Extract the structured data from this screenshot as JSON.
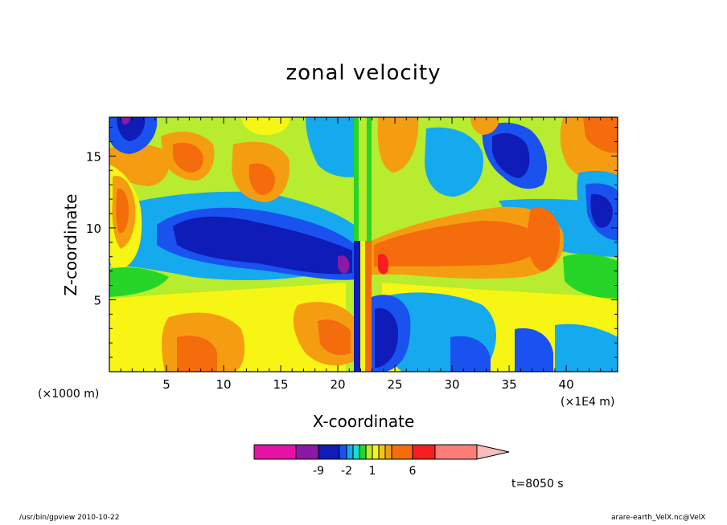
{
  "chart_data": {
    "type": "heatmap",
    "title": "zonal velocity",
    "xlabel": "X-coordinate",
    "ylabel": "Z-coordinate",
    "x_unit_left": "(×1000 m)",
    "x_unit_right": "(×1E4 m)",
    "xlim": [
      0,
      44.5
    ],
    "ylim": [
      0,
      17.7
    ],
    "x_ticks": [
      5,
      10,
      15,
      20,
      25,
      30,
      35,
      40
    ],
    "x_tick_labels": [
      "5",
      "10",
      "15",
      "20",
      "25",
      "30",
      "35",
      "40"
    ],
    "y_ticks": [
      5,
      10,
      15
    ],
    "y_tick_labels": [
      "5",
      "10",
      "15"
    ],
    "colorbar": {
      "colors": [
        "#e811a8",
        "#8b19a6",
        "#0f1cb8",
        "#1a52f0",
        "#15a9ee",
        "#18e0c8",
        "#26d528",
        "#b7ec2f",
        "#f6f514",
        "#f5c510",
        "#f59d10",
        "#f46c0c",
        "#f51f1f",
        "#fa7d77",
        "#f7bcbc"
      ],
      "tick_labels": [
        "-9",
        "-2",
        "1",
        "6"
      ],
      "extends": "max"
    },
    "time_label": "t=8050 s",
    "footer_left": "/usr/bin/gpview   2010-10-22",
    "footer_right": "arare-earth_VelX.nc@VelX"
  }
}
